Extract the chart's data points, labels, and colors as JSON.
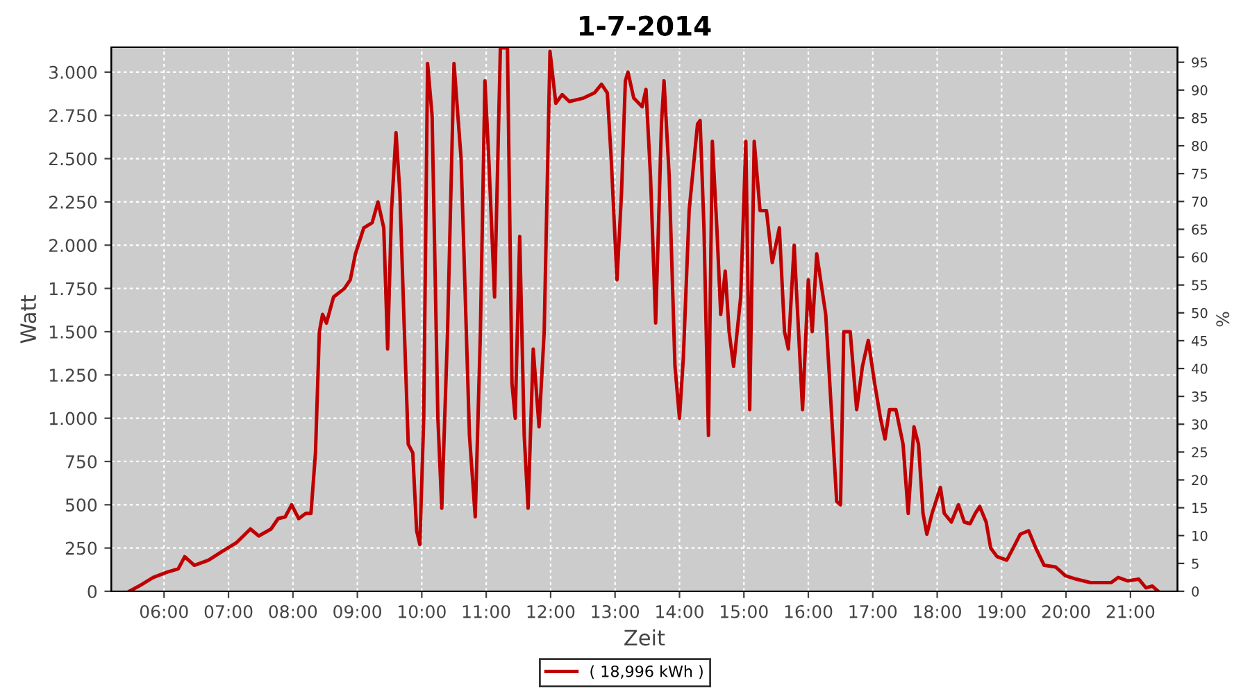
{
  "chart_data": {
    "type": "line",
    "title": "1-7-2014",
    "xlabel": "Zeit",
    "ylabel": "Watt",
    "y2label": "%",
    "xlim": [
      5.18,
      21.73
    ],
    "xticks": [
      {
        "value": 6,
        "label": "06:00"
      },
      {
        "value": 7,
        "label": "07:00"
      },
      {
        "value": 8,
        "label": "08:00"
      },
      {
        "value": 9,
        "label": "09:00"
      },
      {
        "value": 10,
        "label": "10:00"
      },
      {
        "value": 11,
        "label": "11:00"
      },
      {
        "value": 12,
        "label": "12:00"
      },
      {
        "value": 13,
        "label": "13:00"
      },
      {
        "value": 14,
        "label": "14:00"
      },
      {
        "value": 15,
        "label": "15:00"
      },
      {
        "value": 16,
        "label": "16:00"
      },
      {
        "value": 17,
        "label": "17:00"
      },
      {
        "value": 18,
        "label": "18:00"
      },
      {
        "value": 19,
        "label": "19:00"
      },
      {
        "value": 20,
        "label": "20:00"
      },
      {
        "value": 21,
        "label": "21:00"
      }
    ],
    "ylim": [
      0,
      3144
    ],
    "yticks": [
      0,
      250,
      500,
      750,
      {
        "value": 1000,
        "label": "1.000"
      },
      {
        "value": 1250,
        "label": "1.250"
      },
      {
        "value": 1500,
        "label": "1.500"
      },
      {
        "value": 1750,
        "label": "1.750"
      },
      {
        "value": 2000,
        "label": "2.000"
      },
      {
        "value": 2250,
        "label": "2.250"
      },
      {
        "value": 2500,
        "label": "2.500"
      },
      {
        "value": 2750,
        "label": "2.750"
      },
      {
        "value": 3000,
        "label": "3.000"
      }
    ],
    "y2lim": [
      0,
      97.7
    ],
    "y2ticks": [
      0,
      5,
      10,
      15,
      20,
      25,
      30,
      35,
      40,
      45,
      50,
      55,
      60,
      65,
      70,
      75,
      80,
      85,
      90,
      95
    ],
    "grid": true,
    "legend": "bottom",
    "line_style": "solid",
    "series": [
      {
        "name": "( 18,996 kWh )",
        "color": "#c00000",
        "x": [
          5.46,
          5.61,
          5.83,
          6.04,
          6.22,
          6.32,
          6.47,
          6.69,
          6.9,
          7.12,
          7.34,
          7.47,
          7.66,
          7.77,
          7.88,
          7.98,
          8.09,
          8.2,
          8.28,
          8.35,
          8.41,
          8.46,
          8.52,
          8.63,
          8.8,
          8.89,
          8.97,
          9.1,
          9.23,
          9.32,
          9.41,
          9.47,
          9.53,
          9.6,
          9.66,
          9.73,
          9.79,
          9.86,
          9.92,
          9.97,
          10.03,
          10.09,
          10.16,
          10.25,
          10.31,
          10.4,
          10.5,
          10.61,
          10.74,
          10.83,
          10.91,
          10.98,
          11.04,
          11.13,
          11.22,
          11.33,
          11.4,
          11.45,
          11.52,
          11.59,
          11.65,
          11.73,
          11.82,
          11.9,
          11.99,
          12.08,
          12.18,
          12.29,
          12.51,
          12.68,
          12.79,
          12.88,
          12.94,
          13.03,
          13.1,
          13.16,
          13.2,
          13.29,
          13.42,
          13.48,
          13.55,
          13.63,
          13.72,
          13.76,
          13.84,
          13.93,
          14.0,
          14.06,
          14.15,
          14.28,
          14.32,
          14.38,
          14.45,
          14.51,
          14.58,
          14.64,
          14.71,
          14.77,
          14.84,
          14.95,
          15.03,
          15.09,
          15.16,
          15.25,
          15.35,
          15.44,
          15.55,
          15.63,
          15.69,
          15.78,
          15.91,
          16.0,
          16.06,
          16.13,
          16.19,
          16.27,
          16.44,
          16.5,
          16.55,
          16.65,
          16.75,
          16.84,
          16.93,
          17.03,
          17.12,
          17.19,
          17.26,
          17.36,
          17.47,
          17.55,
          17.64,
          17.71,
          17.78,
          17.84,
          17.92,
          18.05,
          18.11,
          18.22,
          18.33,
          18.42,
          18.51,
          18.59,
          18.66,
          18.76,
          18.83,
          18.93,
          19.08,
          19.18,
          19.29,
          19.42,
          19.53,
          19.66,
          19.84,
          19.99,
          20.16,
          20.38,
          20.7,
          20.81,
          20.96,
          21.13,
          21.24,
          21.34,
          21.43
        ],
        "values": [
          0,
          30,
          80,
          110,
          130,
          200,
          150,
          180,
          230,
          280,
          360,
          320,
          360,
          420,
          430,
          500,
          420,
          450,
          450,
          800,
          1500,
          1600,
          1550,
          1700,
          1750,
          1800,
          1950,
          2100,
          2130,
          2250,
          2100,
          1400,
          2200,
          2650,
          2300,
          1500,
          850,
          800,
          350,
          270,
          1000,
          3050,
          2750,
          1000,
          480,
          1500,
          3050,
          2500,
          900,
          430,
          1500,
          2950,
          2500,
          1700,
          3140,
          3140,
          1200,
          1000,
          2050,
          900,
          480,
          1400,
          950,
          1500,
          3120,
          2820,
          2870,
          2830,
          2850,
          2880,
          2930,
          2880,
          2500,
          1800,
          2300,
          2950,
          3000,
          2850,
          2800,
          2900,
          2400,
          1550,
          2700,
          2950,
          2400,
          1300,
          1000,
          1350,
          2200,
          2700,
          2720,
          2100,
          900,
          2600,
          2100,
          1600,
          1850,
          1500,
          1300,
          1700,
          2600,
          1050,
          2600,
          2200,
          2200,
          1900,
          2100,
          1500,
          1400,
          2000,
          1050,
          1800,
          1500,
          1950,
          1800,
          1600,
          520,
          500,
          1500,
          1500,
          1050,
          1300,
          1450,
          1200,
          1000,
          880,
          1050,
          1050,
          850,
          450,
          950,
          850,
          450,
          330,
          450,
          600,
          450,
          400,
          500,
          400,
          390,
          450,
          490,
          400,
          250,
          200,
          180,
          250,
          330,
          350,
          250,
          150,
          140,
          90,
          70,
          50,
          50,
          80,
          60,
          70,
          20,
          30,
          0
        ]
      }
    ]
  }
}
